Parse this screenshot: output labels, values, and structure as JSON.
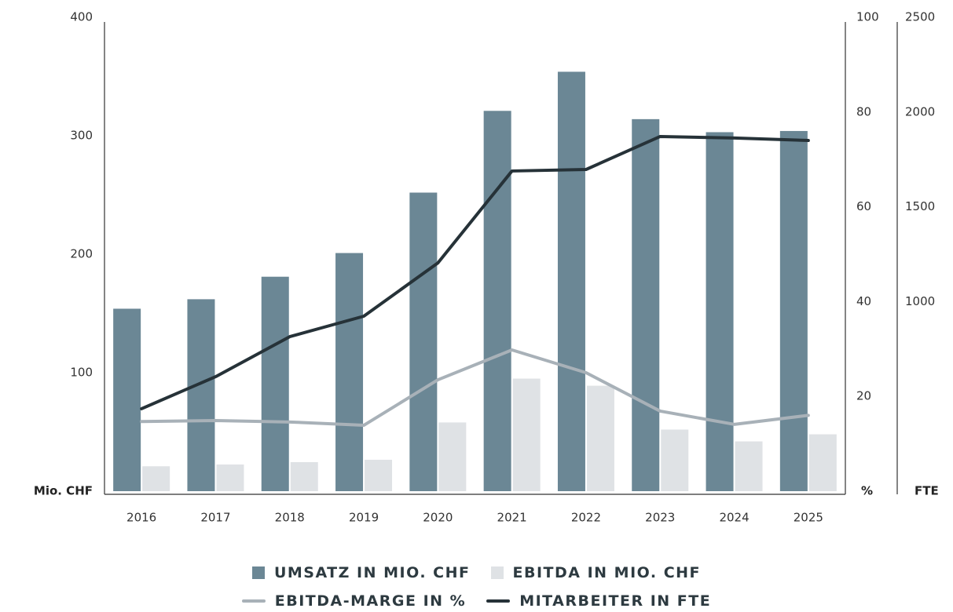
{
  "chart_data": {
    "type": "bar-line",
    "categories": [
      "2016",
      "2017",
      "2018",
      "2019",
      "2020",
      "2021",
      "2022",
      "2023",
      "2024",
      "2025"
    ],
    "series": [
      {
        "name": "UMSATZ IN MIO. CHF",
        "type": "bar",
        "axis": "y",
        "color": "#6b8795",
        "values": [
          154,
          162,
          181,
          201,
          252,
          321,
          354,
          314,
          303,
          304
        ]
      },
      {
        "name": "EBITDA IN MIO. CHF",
        "type": "bar",
        "axis": "y",
        "color": "#dfe2e5",
        "values": [
          21,
          22.5,
          24.5,
          26.5,
          58,
          95,
          89,
          52,
          42,
          48
        ]
      },
      {
        "name": "EBITDA-MARGE IN %",
        "type": "line",
        "axis": "y2",
        "color": "#a8b1b8",
        "values": [
          14.7,
          14.9,
          14.6,
          13.9,
          23.5,
          29.8,
          25,
          16.9,
          14.1,
          16
        ]
      },
      {
        "name": "MITARBEITER IN FTE",
        "type": "line",
        "axis": "y3",
        "color": "#263238",
        "values": [
          435,
          604,
          815,
          923,
          1204,
          1689,
          1697,
          1871,
          1863,
          1850
        ]
      }
    ],
    "y_label": "Mio. CHF",
    "ylim": [
      0,
      400
    ],
    "yticks": [
      100,
      200,
      300,
      400
    ],
    "y2_label": "%",
    "y2lim": [
      0,
      100
    ],
    "y2ticks": [
      20,
      40,
      60,
      80,
      100
    ],
    "y3_label": "FTE",
    "y3lim": [
      0,
      2500
    ],
    "y3ticks": [
      1000,
      1500,
      2000,
      2500
    ],
    "grid": false
  }
}
